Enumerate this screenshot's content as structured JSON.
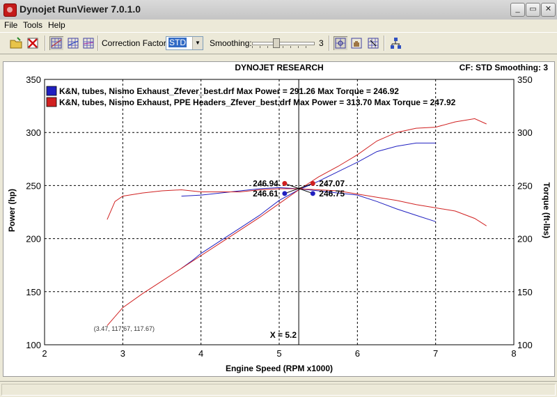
{
  "window": {
    "title": "Dynojet RunViewer 7.0.1.0"
  },
  "menu": [
    "File",
    "Tools",
    "Help"
  ],
  "toolbar": {
    "correction_label": "Correction Factor:",
    "correction_value": "STD",
    "smoothing_label": "Smoothing:",
    "smoothing_value": "3",
    "smoothing_level": 3
  },
  "colors": {
    "series1": "#2020c0",
    "series2": "#d02020"
  },
  "chart_data": {
    "type": "line",
    "title": "DYNOJET RESEARCH",
    "header_right": "CF: STD  Smoothing: 3",
    "xlabel": "Engine Speed (RPM x1000)",
    "ylabel": "Power (hp)",
    "y2label": "Torque (ft-lbs)",
    "xlim": [
      2,
      8
    ],
    "ylim": [
      100,
      350
    ],
    "y2lim": [
      100,
      350
    ],
    "xticks": [
      "2",
      "3",
      "4",
      "5",
      "6",
      "7",
      "8"
    ],
    "yticks": [
      "100",
      "150",
      "200",
      "250",
      "300",
      "350"
    ],
    "y2ticks": [
      "100",
      "150",
      "200",
      "250",
      "300",
      "350"
    ],
    "grid": true,
    "legend_position": "top-left",
    "legend": [
      "K&N, tubes, Nismo Exhaust_Zfever_best.drf Max Power = 291.26 Max Torque = 246.92",
      "K&N, tubes, Nismo Exhaust, PPE Headers_Zfever_best.drf Max Power = 313.70 Max Torque = 247.92"
    ],
    "cursor": {
      "x": 5.25,
      "label": "X = 5.2"
    },
    "crosshair": {
      "x": 5.25,
      "y": 247
    },
    "coordinate_readout": "(3.47, 117.67, 117.67)",
    "point_labels": [
      {
        "text": "246.94",
        "x": 5.07,
        "y": 252,
        "series": 1
      },
      {
        "text": "246.61",
        "x": 5.07,
        "y": 242.5,
        "series": 0
      },
      {
        "text": "247.07",
        "x": 5.43,
        "y": 252,
        "series": 1
      },
      {
        "text": "246.75",
        "x": 5.43,
        "y": 242.5,
        "series": 0
      }
    ],
    "series": [
      {
        "name": "K&N, tubes, Nismo Exhaust_Zfever_best.drf",
        "kind": "power",
        "x": [
          3.75,
          3.9,
          4.0,
          4.25,
          4.5,
          4.75,
          5.0,
          5.25,
          5.5,
          5.75,
          6.0,
          6.25,
          6.5,
          6.75,
          7.0
        ],
        "y": [
          172,
          180,
          186,
          198,
          210,
          222,
          236,
          246,
          254,
          263,
          272,
          282,
          287,
          290,
          290
        ]
      },
      {
        "name": "K&N, tubes, Nismo Exhaust_Zfever_best.drf",
        "kind": "torque",
        "x": [
          3.75,
          4.0,
          4.25,
          4.5,
          4.75,
          5.0,
          5.25,
          5.5,
          5.75,
          6.0,
          6.25,
          6.5,
          6.75,
          7.0
        ],
        "y": [
          240,
          241,
          243,
          245,
          247,
          248,
          247,
          245,
          243,
          241,
          235,
          228,
          222,
          216
        ]
      },
      {
        "name": "K&N, tubes, Nismo Exhaust, PPE Headers_Zfever_best.drf",
        "kind": "power",
        "x": [
          2.8,
          3.0,
          3.25,
          3.5,
          3.75,
          4.0,
          4.25,
          4.5,
          4.75,
          5.0,
          5.25,
          5.5,
          5.75,
          6.0,
          6.25,
          6.5,
          6.75,
          7.0,
          7.25,
          7.5,
          7.65
        ],
        "y": [
          118,
          135,
          148,
          160,
          172,
          184,
          196,
          208,
          220,
          233,
          246,
          258,
          268,
          279,
          292,
          300,
          304,
          305,
          310,
          313,
          308
        ]
      },
      {
        "name": "K&N, tubes, Nismo Exhaust, PPE Headers_Zfever_best.drf",
        "kind": "torque",
        "x": [
          2.8,
          2.9,
          3.0,
          3.25,
          3.5,
          3.75,
          4.0,
          4.25,
          4.5,
          4.75,
          5.0,
          5.25,
          5.5,
          5.75,
          6.0,
          6.25,
          6.5,
          6.75,
          7.0,
          7.25,
          7.5,
          7.65
        ],
        "y": [
          218,
          235,
          240,
          243,
          245,
          246,
          244,
          244,
          244,
          246,
          247,
          247,
          246,
          245,
          242,
          239,
          236,
          232,
          229,
          226,
          219,
          212
        ]
      }
    ]
  }
}
